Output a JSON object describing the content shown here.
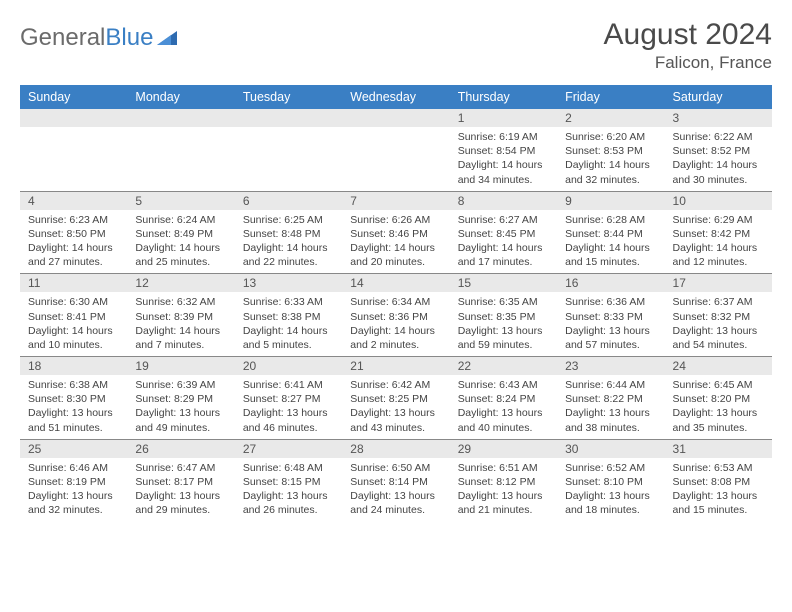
{
  "brand": {
    "part1": "General",
    "part2": "Blue"
  },
  "title": "August 2024",
  "subtitle": "Falicon, France",
  "colors": {
    "header_bg": "#3a7fc4",
    "header_text": "#ffffff",
    "band_bg": "#e9e9e9",
    "border": "#888888",
    "text": "#444444",
    "title_color": "#4a4a4a"
  },
  "day_headers": [
    "Sunday",
    "Monday",
    "Tuesday",
    "Wednesday",
    "Thursday",
    "Friday",
    "Saturday"
  ],
  "weeks": [
    [
      null,
      null,
      null,
      null,
      {
        "n": "1",
        "sr": "6:19 AM",
        "ss": "8:54 PM",
        "dl": "14 hours and 34 minutes."
      },
      {
        "n": "2",
        "sr": "6:20 AM",
        "ss": "8:53 PM",
        "dl": "14 hours and 32 minutes."
      },
      {
        "n": "3",
        "sr": "6:22 AM",
        "ss": "8:52 PM",
        "dl": "14 hours and 30 minutes."
      }
    ],
    [
      {
        "n": "4",
        "sr": "6:23 AM",
        "ss": "8:50 PM",
        "dl": "14 hours and 27 minutes."
      },
      {
        "n": "5",
        "sr": "6:24 AM",
        "ss": "8:49 PM",
        "dl": "14 hours and 25 minutes."
      },
      {
        "n": "6",
        "sr": "6:25 AM",
        "ss": "8:48 PM",
        "dl": "14 hours and 22 minutes."
      },
      {
        "n": "7",
        "sr": "6:26 AM",
        "ss": "8:46 PM",
        "dl": "14 hours and 20 minutes."
      },
      {
        "n": "8",
        "sr": "6:27 AM",
        "ss": "8:45 PM",
        "dl": "14 hours and 17 minutes."
      },
      {
        "n": "9",
        "sr": "6:28 AM",
        "ss": "8:44 PM",
        "dl": "14 hours and 15 minutes."
      },
      {
        "n": "10",
        "sr": "6:29 AM",
        "ss": "8:42 PM",
        "dl": "14 hours and 12 minutes."
      }
    ],
    [
      {
        "n": "11",
        "sr": "6:30 AM",
        "ss": "8:41 PM",
        "dl": "14 hours and 10 minutes."
      },
      {
        "n": "12",
        "sr": "6:32 AM",
        "ss": "8:39 PM",
        "dl": "14 hours and 7 minutes."
      },
      {
        "n": "13",
        "sr": "6:33 AM",
        "ss": "8:38 PM",
        "dl": "14 hours and 5 minutes."
      },
      {
        "n": "14",
        "sr": "6:34 AM",
        "ss": "8:36 PM",
        "dl": "14 hours and 2 minutes."
      },
      {
        "n": "15",
        "sr": "6:35 AM",
        "ss": "8:35 PM",
        "dl": "13 hours and 59 minutes."
      },
      {
        "n": "16",
        "sr": "6:36 AM",
        "ss": "8:33 PM",
        "dl": "13 hours and 57 minutes."
      },
      {
        "n": "17",
        "sr": "6:37 AM",
        "ss": "8:32 PM",
        "dl": "13 hours and 54 minutes."
      }
    ],
    [
      {
        "n": "18",
        "sr": "6:38 AM",
        "ss": "8:30 PM",
        "dl": "13 hours and 51 minutes."
      },
      {
        "n": "19",
        "sr": "6:39 AM",
        "ss": "8:29 PM",
        "dl": "13 hours and 49 minutes."
      },
      {
        "n": "20",
        "sr": "6:41 AM",
        "ss": "8:27 PM",
        "dl": "13 hours and 46 minutes."
      },
      {
        "n": "21",
        "sr": "6:42 AM",
        "ss": "8:25 PM",
        "dl": "13 hours and 43 minutes."
      },
      {
        "n": "22",
        "sr": "6:43 AM",
        "ss": "8:24 PM",
        "dl": "13 hours and 40 minutes."
      },
      {
        "n": "23",
        "sr": "6:44 AM",
        "ss": "8:22 PM",
        "dl": "13 hours and 38 minutes."
      },
      {
        "n": "24",
        "sr": "6:45 AM",
        "ss": "8:20 PM",
        "dl": "13 hours and 35 minutes."
      }
    ],
    [
      {
        "n": "25",
        "sr": "6:46 AM",
        "ss": "8:19 PM",
        "dl": "13 hours and 32 minutes."
      },
      {
        "n": "26",
        "sr": "6:47 AM",
        "ss": "8:17 PM",
        "dl": "13 hours and 29 minutes."
      },
      {
        "n": "27",
        "sr": "6:48 AM",
        "ss": "8:15 PM",
        "dl": "13 hours and 26 minutes."
      },
      {
        "n": "28",
        "sr": "6:50 AM",
        "ss": "8:14 PM",
        "dl": "13 hours and 24 minutes."
      },
      {
        "n": "29",
        "sr": "6:51 AM",
        "ss": "8:12 PM",
        "dl": "13 hours and 21 minutes."
      },
      {
        "n": "30",
        "sr": "6:52 AM",
        "ss": "8:10 PM",
        "dl": "13 hours and 18 minutes."
      },
      {
        "n": "31",
        "sr": "6:53 AM",
        "ss": "8:08 PM",
        "dl": "13 hours and 15 minutes."
      }
    ]
  ],
  "labels": {
    "sunrise": "Sunrise:",
    "sunset": "Sunset:",
    "daylight": "Daylight:"
  }
}
